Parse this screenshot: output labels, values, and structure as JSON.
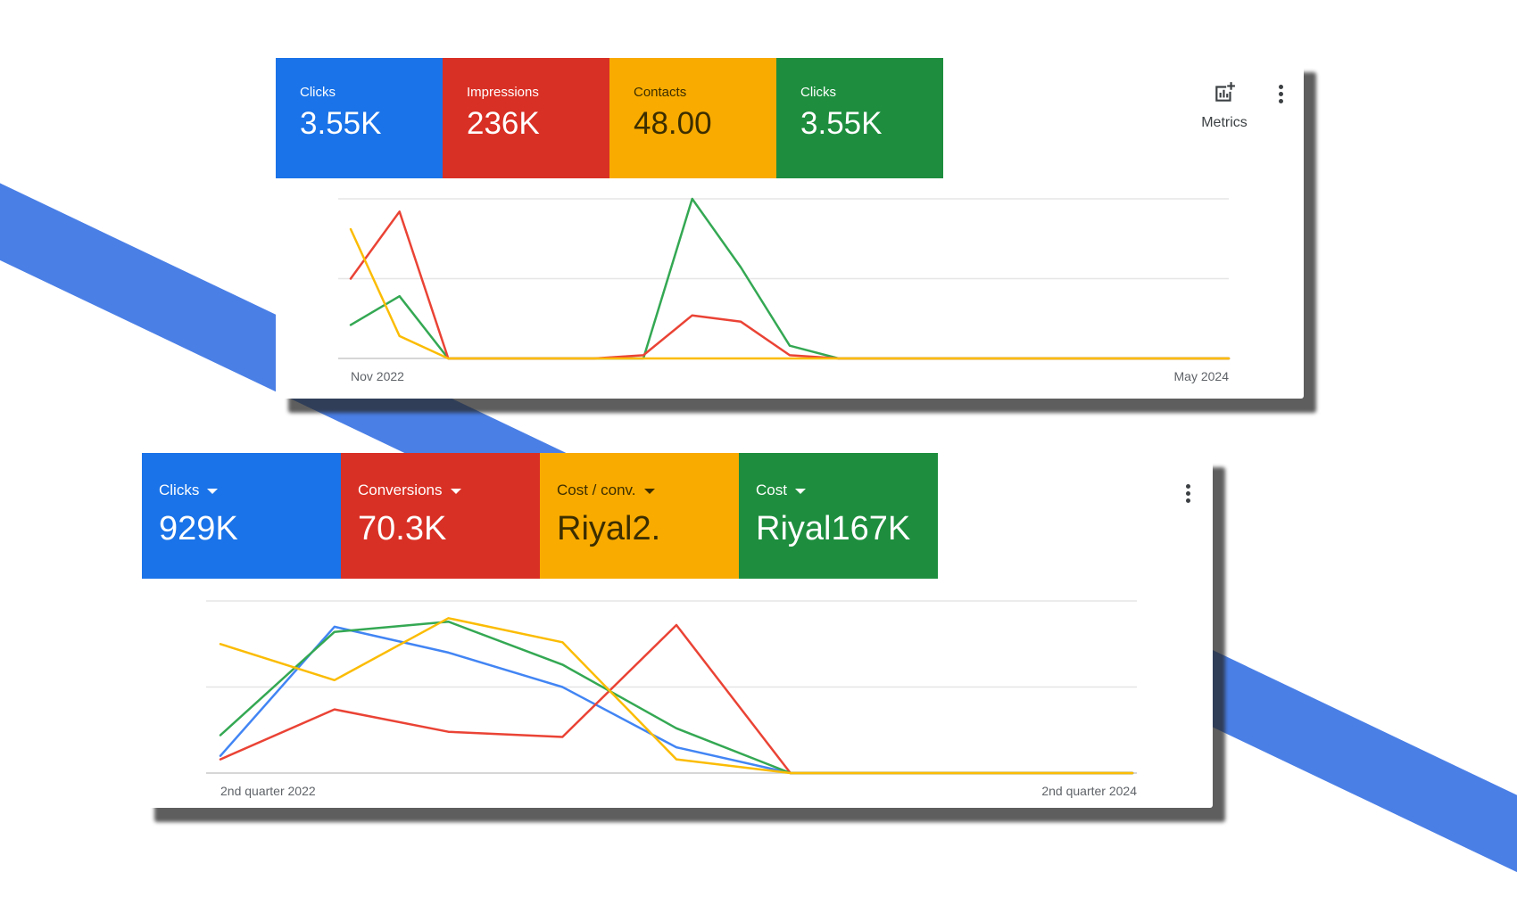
{
  "top_panel": {
    "tiles": [
      {
        "label": "Clicks",
        "value": "3.55K",
        "color": "#1a73e8"
      },
      {
        "label": "Impressions",
        "value": "236K",
        "color": "#d93025"
      },
      {
        "label": "Contacts",
        "value": "48.00",
        "color": "#f9ab00"
      },
      {
        "label": "Clicks",
        "value": "3.55K",
        "color": "#1e8e3e"
      }
    ],
    "metrics_label": "Metrics",
    "metrics_icon": "add-chart-icon",
    "menu_icon": "more-vert-icon"
  },
  "bottom_panel": {
    "tiles": [
      {
        "label": "Clicks",
        "value": "929K",
        "color": "#1a73e8"
      },
      {
        "label": "Conversions",
        "value": "70.3K",
        "color": "#d93025"
      },
      {
        "label": "Cost / conv.",
        "value": "Riyal2.",
        "color": "#f9ab00"
      },
      {
        "label": "Cost",
        "value": "Riyal167K",
        "color": "#1e8e3e"
      }
    ],
    "dropdown_icon": "caret-down-icon",
    "menu_icon": "more-vert-icon"
  },
  "chart_data": [
    {
      "type": "line",
      "x": [
        "Nov 2022",
        "Dec 2022",
        "Jan 2023",
        "Feb 2023",
        "Mar 2023",
        "Apr 2023",
        "May 2023",
        "Jun 2023",
        "Jul 2023",
        "Aug 2023",
        "Sep 2023",
        "Oct 2023",
        "Nov 2023",
        "Dec 2023",
        "Jan 2024",
        "Feb 2024",
        "Mar 2024",
        "Apr 2024",
        "May 2024"
      ],
      "x_tick_labels": [
        "Nov 2022",
        "May 2024"
      ],
      "ylim": [
        0,
        100
      ],
      "grid": true,
      "series": [
        {
          "color": "#34a853",
          "values": [
            21,
            39,
            0,
            0,
            0,
            0,
            0,
            100,
            57,
            8,
            0,
            0,
            0,
            0,
            0,
            0,
            0,
            0,
            0
          ]
        },
        {
          "color": "#ea4335",
          "values": [
            50,
            92,
            0,
            0,
            0,
            0,
            2,
            27,
            23,
            2,
            0,
            0,
            0,
            0,
            0,
            0,
            0,
            0,
            0
          ]
        },
        {
          "color": "#fbbc04",
          "values": [
            81,
            14,
            0,
            0,
            0,
            0,
            0,
            0,
            0,
            0,
            0,
            0,
            0,
            0,
            0,
            0,
            0,
            0,
            0
          ]
        }
      ]
    },
    {
      "type": "line",
      "x": [
        "Q2 2022",
        "Q3 2022",
        "Q4 2022",
        "Q1 2023",
        "Q2 2023",
        "Q3 2023",
        "Q4 2023",
        "Q1 2024",
        "Q2 2024"
      ],
      "x_tick_labels": [
        "2nd quarter 2022",
        "2nd quarter 2024"
      ],
      "ylim": [
        0,
        100
      ],
      "grid": true,
      "series": [
        {
          "color": "#4285f4",
          "values": [
            10,
            85,
            70,
            50,
            15,
            0,
            0,
            0,
            0
          ]
        },
        {
          "color": "#ea4335",
          "values": [
            8,
            37,
            24,
            21,
            86,
            0,
            0,
            0,
            0
          ]
        },
        {
          "color": "#34a853",
          "values": [
            22,
            82,
            88,
            63,
            26,
            0,
            0,
            0,
            0
          ]
        },
        {
          "color": "#fbbc04",
          "values": [
            75,
            54,
            90,
            76,
            8,
            0,
            0,
            0,
            0
          ]
        }
      ]
    }
  ]
}
